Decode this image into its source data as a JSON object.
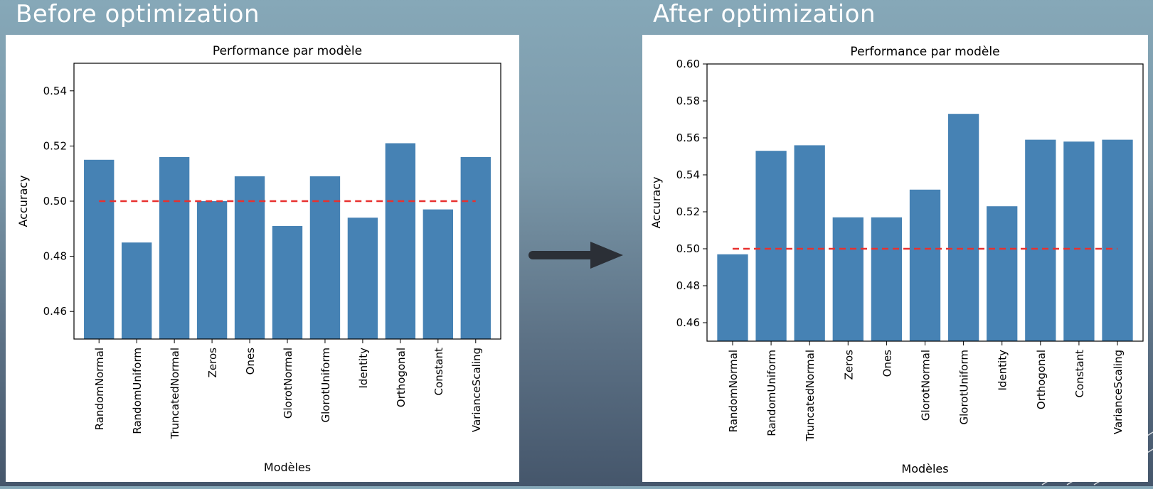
{
  "slide": {
    "before_title": "Before optimization",
    "after_title": "After optimization"
  },
  "colors": {
    "bar": "#4682b4",
    "baseline": "#e8312f",
    "arrow": "#2b2f36"
  },
  "chart_data": [
    {
      "type": "bar",
      "title": "Performance par modèle",
      "xlabel": "Modèles",
      "ylabel": "Accuracy",
      "ylim": [
        0.45,
        0.55
      ],
      "yticks": [
        "0.46",
        "0.48",
        "0.50",
        "0.52",
        "0.54"
      ],
      "ytick_values": [
        0.46,
        0.48,
        0.5,
        0.52,
        0.54
      ],
      "categories": [
        "RandomNormal",
        "RandomUniform",
        "TruncatedNormal",
        "Zeros",
        "Ones",
        "GlorotNormal",
        "GlorotUniform",
        "Identity",
        "Orthogonal",
        "Constant",
        "VarianceScaling"
      ],
      "values": [
        0.515,
        0.485,
        0.516,
        0.5,
        0.509,
        0.491,
        0.509,
        0.494,
        0.521,
        0.497,
        0.516
      ],
      "reference_line": 0.5,
      "grid": false
    },
    {
      "type": "bar",
      "title": "Performance par modèle",
      "xlabel": "Modèles",
      "ylabel": "Accuracy",
      "ylim": [
        0.45,
        0.6
      ],
      "yticks": [
        "0.46",
        "0.48",
        "0.50",
        "0.52",
        "0.54",
        "0.56",
        "0.58",
        "0.60"
      ],
      "ytick_values": [
        0.46,
        0.48,
        0.5,
        0.52,
        0.54,
        0.56,
        0.58,
        0.6
      ],
      "categories": [
        "RandomNormal",
        "RandomUniform",
        "TruncatedNormal",
        "Zeros",
        "Ones",
        "GlorotNormal",
        "GlorotUniform",
        "Identity",
        "Orthogonal",
        "Constant",
        "VarianceScaling"
      ],
      "values": [
        0.497,
        0.553,
        0.556,
        0.517,
        0.517,
        0.532,
        0.573,
        0.523,
        0.559,
        0.558,
        0.559
      ],
      "reference_line": 0.5,
      "grid": false
    }
  ]
}
